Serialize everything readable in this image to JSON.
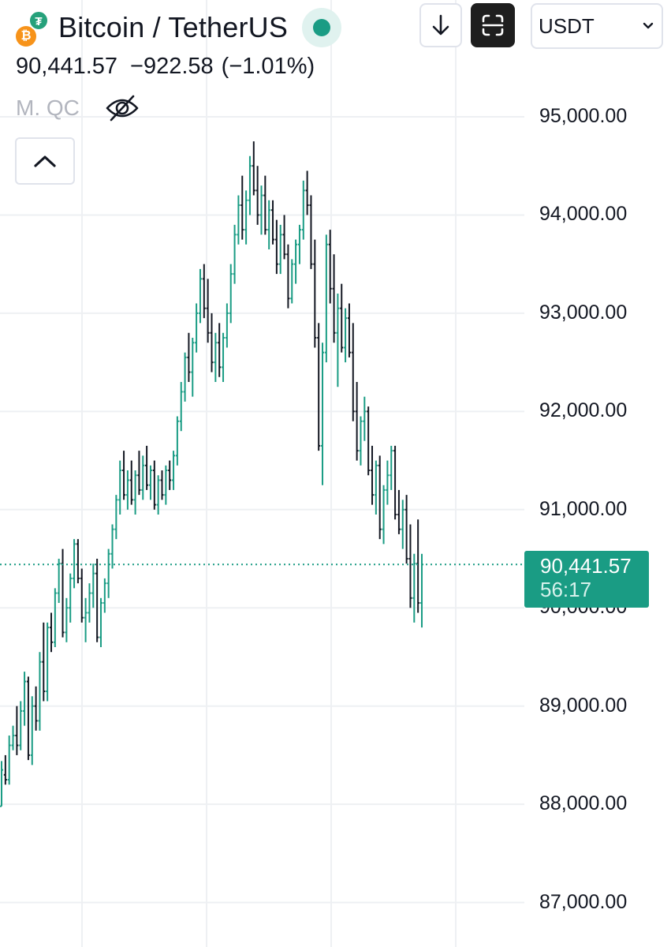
{
  "header": {
    "pair_title": "Bitcoin / TetherUS",
    "base_icon": "bitcoin-icon",
    "quote_icon": "tether-icon",
    "base_glyph": "₿",
    "quote_glyph": "₮",
    "status": "market-open-dot",
    "currency": "USDT"
  },
  "quote": {
    "last": "90,441.57",
    "change": "−922.58",
    "change_pct": "(−1.01%)"
  },
  "indicator": {
    "label": "M. QC"
  },
  "price_axis": {
    "labels": [
      "95,000.00",
      "94,000.00",
      "93,000.00",
      "92,000.00",
      "91,000.00",
      "90,000.00",
      "89,000.00",
      "88,000.00",
      "87,000.00"
    ]
  },
  "last_price_tag": {
    "price": "90,441.57",
    "countdown": "56:17"
  },
  "colors": {
    "up": "#1a9c84",
    "down": "#131722",
    "grid": "#eef0f3",
    "last_line": "#1a9c84"
  },
  "chart_data": {
    "type": "ohlc",
    "ylim": [
      86950,
      95300
    ],
    "yticks": [
      87000,
      88000,
      89000,
      90000,
      91000,
      92000,
      93000,
      94000,
      95000
    ],
    "last_price": 90441.57,
    "bars": [
      [
        87980,
        88440,
        87980,
        88350
      ],
      [
        88300,
        88500,
        88200,
        88250
      ],
      [
        88250,
        88700,
        88200,
        88600
      ],
      [
        88600,
        88800,
        88550,
        88700
      ],
      [
        88700,
        89000,
        88500,
        88600
      ],
      [
        88600,
        89050,
        88550,
        88950
      ],
      [
        88950,
        89350,
        88800,
        89250
      ],
      [
        89250,
        89300,
        88450,
        88500
      ],
      [
        88500,
        89100,
        88400,
        89000
      ],
      [
        89000,
        89200,
        88750,
        88850
      ],
      [
        88850,
        89550,
        88750,
        89450
      ],
      [
        89450,
        89850,
        89050,
        89150
      ],
      [
        89150,
        89850,
        89050,
        89800
      ],
      [
        89800,
        89950,
        89550,
        89650
      ],
      [
        89650,
        90200,
        89600,
        90150
      ],
      [
        90150,
        90500,
        90050,
        90450
      ],
      [
        90450,
        90600,
        89700,
        89750
      ],
      [
        89750,
        90100,
        89650,
        90000
      ],
      [
        90000,
        90350,
        89850,
        90300
      ],
      [
        90300,
        90700,
        90200,
        90650
      ],
      [
        90650,
        90700,
        90250,
        90300
      ],
      [
        90300,
        90400,
        89850,
        89900
      ],
      [
        89900,
        90100,
        89650,
        89950
      ],
      [
        89950,
        90250,
        89850,
        90150
      ],
      [
        90150,
        90450,
        90000,
        90350
      ],
      [
        90350,
        90500,
        89650,
        89700
      ],
      [
        89700,
        90100,
        89600,
        90050
      ],
      [
        90050,
        90300,
        89950,
        90250
      ],
      [
        90250,
        90600,
        90100,
        90550
      ],
      [
        90550,
        90850,
        90400,
        90800
      ],
      [
        90800,
        91150,
        90700,
        91100
      ],
      [
        91100,
        91500,
        90950,
        91400
      ],
      [
        91400,
        91600,
        91100,
        91150
      ],
      [
        91150,
        91400,
        91000,
        91300
      ],
      [
        91300,
        91500,
        91050,
        91100
      ],
      [
        91100,
        91400,
        90950,
        91350
      ],
      [
        91350,
        91600,
        91150,
        91200
      ],
      [
        91200,
        91550,
        91100,
        91450
      ],
      [
        91450,
        91650,
        91200,
        91250
      ],
      [
        91250,
        91450,
        91100,
        91400
      ],
      [
        91400,
        91500,
        91000,
        91050
      ],
      [
        91050,
        91350,
        90950,
        91300
      ],
      [
        91300,
        91400,
        91100,
        91150
      ],
      [
        91150,
        91450,
        91050,
        91400
      ],
      [
        91400,
        91500,
        91200,
        91300
      ],
      [
        91300,
        91600,
        91200,
        91550
      ],
      [
        91550,
        91950,
        91450,
        91900
      ],
      [
        91900,
        92300,
        91800,
        92200
      ],
      [
        92200,
        92600,
        92100,
        92550
      ],
      [
        92550,
        92800,
        92300,
        92400
      ],
      [
        92400,
        92750,
        92150,
        92700
      ],
      [
        92700,
        93100,
        92600,
        93000
      ],
      [
        93000,
        93450,
        92900,
        93350
      ],
      [
        93350,
        93500,
        92950,
        93050
      ],
      [
        93050,
        93350,
        92700,
        92800
      ],
      [
        92800,
        93000,
        92400,
        92500
      ],
      [
        92500,
        92800,
        92300,
        92700
      ],
      [
        92700,
        92900,
        92350,
        92450
      ],
      [
        92450,
        92800,
        92300,
        92750
      ],
      [
        92750,
        93100,
        92650,
        93000
      ],
      [
        93000,
        93500,
        92900,
        93400
      ],
      [
        93400,
        93900,
        93300,
        93800
      ],
      [
        93800,
        94200,
        93700,
        94100
      ],
      [
        94100,
        94400,
        93750,
        93850
      ],
      [
        93850,
        94250,
        93700,
        94150
      ],
      [
        94150,
        94600,
        94000,
        94500
      ],
      [
        94500,
        94750,
        94200,
        94250
      ],
      [
        94250,
        94500,
        93900,
        94000
      ],
      [
        94000,
        94300,
        93800,
        94200
      ],
      [
        94200,
        94400,
        93800,
        93850
      ],
      [
        93850,
        94150,
        93650,
        94050
      ],
      [
        94050,
        94150,
        93700,
        93750
      ],
      [
        93750,
        93950,
        93400,
        93500
      ],
      [
        93500,
        93900,
        93400,
        93800
      ],
      [
        93800,
        94000,
        93550,
        93600
      ],
      [
        93600,
        93700,
        93050,
        93150
      ],
      [
        93150,
        93550,
        93100,
        93500
      ],
      [
        93500,
        93750,
        93300,
        93700
      ],
      [
        93700,
        93900,
        93500,
        93850
      ],
      [
        93850,
        94350,
        93750,
        94250
      ],
      [
        94250,
        94450,
        94000,
        94100
      ],
      [
        94100,
        94200,
        93450,
        93500
      ],
      [
        93500,
        93750,
        92650,
        92750
      ],
      [
        92750,
        92900,
        91600,
        91650
      ],
      [
        91650,
        92700,
        91250,
        92600
      ],
      [
        92600,
        93800,
        92500,
        93700
      ],
      [
        93700,
        93850,
        93100,
        93250
      ],
      [
        93250,
        93600,
        92700,
        92800
      ],
      [
        92800,
        93200,
        92250,
        93050
      ],
      [
        93050,
        93300,
        92600,
        92650
      ],
      [
        92650,
        93050,
        92500,
        92950
      ],
      [
        92950,
        93100,
        92550,
        92600
      ],
      [
        92600,
        92900,
        91900,
        92000
      ],
      [
        92000,
        92300,
        91500,
        91600
      ],
      [
        91600,
        91950,
        91450,
        91900
      ],
      [
        91900,
        92150,
        91700,
        92000
      ],
      [
        92000,
        92050,
        91350,
        91400
      ],
      [
        91400,
        91650,
        91050,
        91150
      ],
      [
        91150,
        91500,
        90950,
        91450
      ],
      [
        91450,
        91550,
        90700,
        90800
      ],
      [
        90800,
        91250,
        90650,
        91200
      ],
      [
        91200,
        91500,
        91050,
        91350
      ],
      [
        91350,
        91650,
        91200,
        91600
      ],
      [
        91600,
        91650,
        90900,
        90950
      ],
      [
        90950,
        91200,
        90750,
        90800
      ],
      [
        90800,
        91100,
        90600,
        91000
      ],
      [
        91000,
        91150,
        90450,
        90500
      ],
      [
        90500,
        90850,
        90000,
        90100
      ],
      [
        90100,
        90550,
        89850,
        90450
      ],
      [
        90450,
        90900,
        89950,
        90050
      ],
      [
        90050,
        90550,
        89800,
        90441.57
      ]
    ]
  }
}
